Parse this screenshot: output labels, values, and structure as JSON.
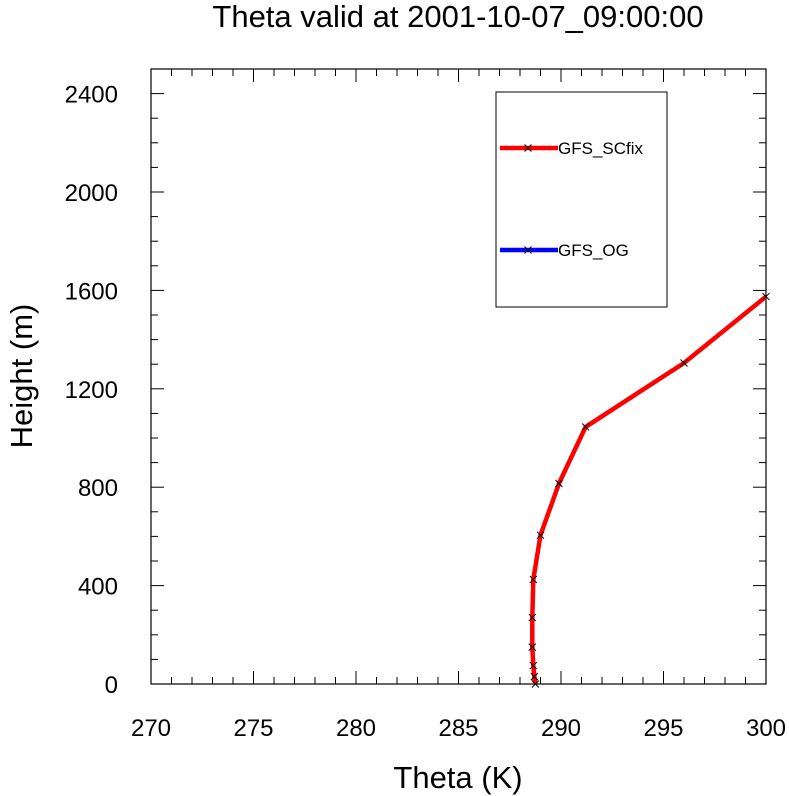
{
  "chart_data": {
    "type": "line",
    "title": "Theta valid at 2001-10-07_09:00:00",
    "xlabel": "Theta (K)",
    "ylabel": "Height (m)",
    "xlim": [
      270,
      300
    ],
    "ylim": [
      0,
      2500
    ],
    "x_ticks": [
      "270",
      "275",
      "280",
      "285",
      "290",
      "295",
      "300"
    ],
    "y_ticks": [
      "0",
      "400",
      "800",
      "1200",
      "1600",
      "2000",
      "2400"
    ],
    "grid": false,
    "legend_position": "top-right",
    "series": [
      {
        "name": "GFS_SCfix",
        "color": "#ff0000",
        "marker": "x",
        "points": [
          [
            288.75,
            0
          ],
          [
            288.7,
            30
          ],
          [
            288.65,
            75
          ],
          [
            288.6,
            150
          ],
          [
            288.6,
            270
          ],
          [
            288.65,
            425
          ],
          [
            289.0,
            605
          ],
          [
            289.9,
            815
          ],
          [
            291.2,
            1045
          ],
          [
            296.0,
            1305
          ],
          [
            300.0,
            1575
          ]
        ]
      },
      {
        "name": "GFS_OG",
        "color": "#0000ff",
        "marker": "x",
        "points": []
      }
    ]
  }
}
